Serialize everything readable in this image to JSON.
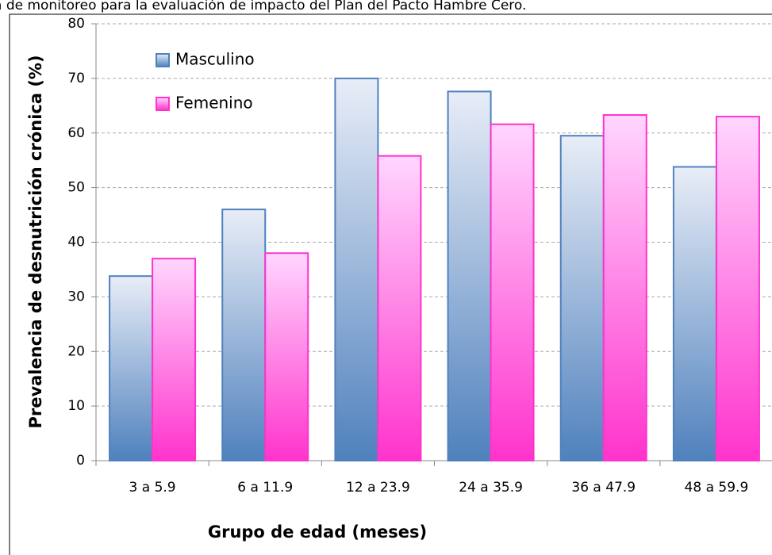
{
  "chart_data": {
    "type": "bar",
    "title": "a de monitoreo para la evaluación de impacto del Plan del Pacto Hambre Cero.",
    "xlabel": "Grupo de edad (meses)",
    "ylabel": "Prevalencia de desnutrición crónica (%)",
    "categories": [
      "3 a 5.9",
      "6 a 11.9",
      "12 a 23.9",
      "24 a 35.9",
      "36 a 47.9",
      "48 a 59.9"
    ],
    "series": [
      {
        "name": "Masculino",
        "color": "#4f81bd",
        "values": [
          33.8,
          46,
          70,
          67.6,
          59.5,
          53.8
        ]
      },
      {
        "name": "Femenino",
        "color": "#ff33cc",
        "values": [
          37,
          38,
          55.8,
          61.6,
          63.3,
          63
        ]
      }
    ],
    "ylim": [
      0,
      80
    ],
    "yticks": [
      0,
      10,
      20,
      30,
      40,
      50,
      60,
      70,
      80
    ],
    "grid": true,
    "legend": "upper left"
  }
}
